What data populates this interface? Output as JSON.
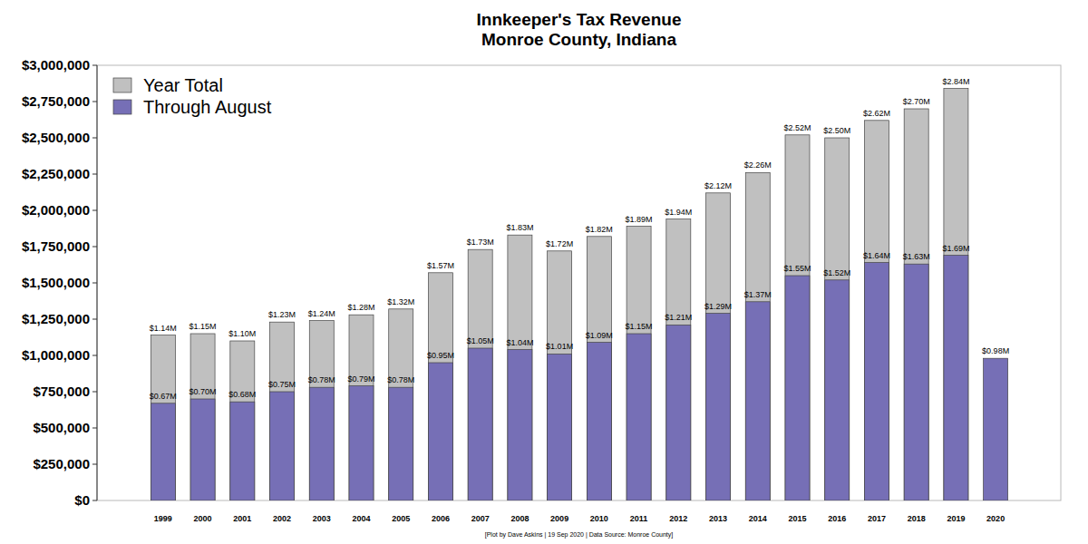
{
  "chart_data": {
    "type": "bar",
    "title": "Innkeeper's Tax Revenue",
    "subtitle": "Monroe County, Indiana",
    "caption": "[Plot by Dave Askins | 19 Sep 2020 | Data Source: Monroe County]",
    "categories": [
      "1999",
      "2000",
      "2001",
      "2002",
      "2003",
      "2004",
      "2005",
      "2006",
      "2007",
      "2008",
      "2009",
      "2010",
      "2011",
      "2012",
      "2013",
      "2014",
      "2015",
      "2016",
      "2017",
      "2018",
      "2019",
      "2020"
    ],
    "series": [
      {
        "name": "Year Total",
        "color": "#c0c0c0",
        "values": [
          1140000,
          1150000,
          1100000,
          1230000,
          1240000,
          1280000,
          1320000,
          1570000,
          1730000,
          1830000,
          1720000,
          1820000,
          1890000,
          1940000,
          2120000,
          2260000,
          2520000,
          2500000,
          2620000,
          2700000,
          2840000,
          null
        ],
        "value_labels": [
          "$1.14M",
          "$1.15M",
          "$1.10M",
          "$1.23M",
          "$1.24M",
          "$1.28M",
          "$1.32M",
          "$1.57M",
          "$1.73M",
          "$1.83M",
          "$1.72M",
          "$1.82M",
          "$1.89M",
          "$1.94M",
          "$2.12M",
          "$2.26M",
          "$2.52M",
          "$2.50M",
          "$2.62M",
          "$2.70M",
          "$2.84M",
          null
        ]
      },
      {
        "name": "Through August",
        "color": "#766fb6",
        "values": [
          670000,
          700000,
          680000,
          750000,
          780000,
          790000,
          780000,
          950000,
          1050000,
          1040000,
          1010000,
          1090000,
          1150000,
          1210000,
          1290000,
          1370000,
          1550000,
          1520000,
          1640000,
          1630000,
          1690000,
          980000
        ],
        "value_labels": [
          "$0.67M",
          "$0.70M",
          "$0.68M",
          "$0.75M",
          "$0.78M",
          "$0.79M",
          "$0.78M",
          "$0.95M",
          "$1.05M",
          "$1.04M",
          "$1.01M",
          "$1.09M",
          "$1.15M",
          "$1.21M",
          "$1.29M",
          "$1.37M",
          "$1.55M",
          "$1.52M",
          "$1.64M",
          "$1.63M",
          "$1.69M",
          "$0.98M"
        ]
      }
    ],
    "ylim": [
      0,
      3000000
    ],
    "yticks": [
      {
        "value": 0,
        "label": "$0"
      },
      {
        "value": 250000,
        "label": "$250,000"
      },
      {
        "value": 500000,
        "label": "$500,000"
      },
      {
        "value": 750000,
        "label": "$750,000"
      },
      {
        "value": 1000000,
        "label": "$1,000,000"
      },
      {
        "value": 1250000,
        "label": "$1,250,000"
      },
      {
        "value": 1500000,
        "label": "$1,500,000"
      },
      {
        "value": 1750000,
        "label": "$1,750,000"
      },
      {
        "value": 2000000,
        "label": "$2,000,000"
      },
      {
        "value": 2250000,
        "label": "$2,250,000"
      },
      {
        "value": 2500000,
        "label": "$2,500,000"
      },
      {
        "value": 2750000,
        "label": "$2,750,000"
      },
      {
        "value": 3000000,
        "label": "$3,000,000"
      }
    ],
    "grid": false,
    "stacked": false,
    "data_labels": true,
    "legend": "upper left"
  }
}
